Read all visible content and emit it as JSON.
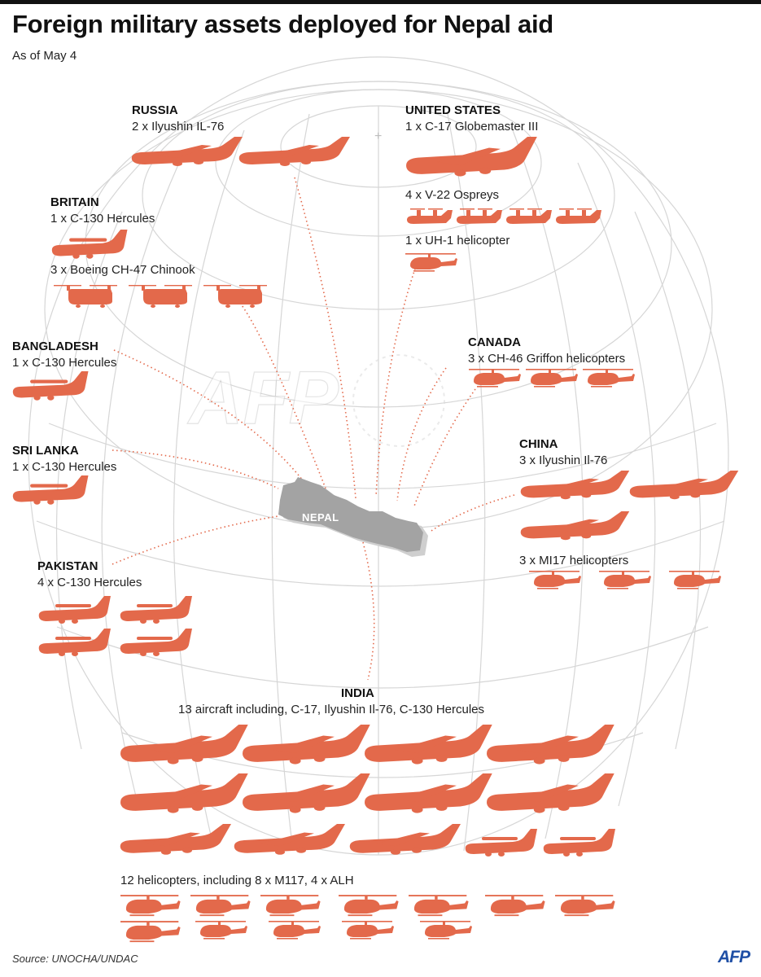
{
  "title": "Foreign military assets deployed for Nepal aid",
  "subtitle": "As of May 4",
  "map_label": "NEPAL",
  "source": "Source: UNOCHA/UNDAC",
  "brand": "AFP",
  "colors": {
    "aircraft": "#e3694b",
    "nepal": "#a3a3a3",
    "nepal_shadow": "#cfcfcf",
    "connector": "#e3694b",
    "globe_lines": "#d6d6d6"
  },
  "countries": {
    "russia": {
      "name": "RUSSIA",
      "lines": [
        "2 x Ilyushin IL-76"
      ]
    },
    "united_states": {
      "name": "UNITED STATES",
      "lines": [
        "1 x C-17 Globemaster III",
        "4 x V-22 Ospreys",
        "1 x UH-1 helicopter"
      ]
    },
    "britain": {
      "name": "BRITAIN",
      "lines": [
        "1 x  C-130 Hercules",
        "3 x Boeing CH-47 Chinook"
      ]
    },
    "bangladesh": {
      "name": "BANGLADESH",
      "lines": [
        "1 x  C-130 Hercules"
      ]
    },
    "canada": {
      "name": "CANADA",
      "lines": [
        "3 x CH-46 Griffon helicopters"
      ]
    },
    "sri_lanka": {
      "name": "SRI LANKA",
      "lines": [
        "1 x  C-130 Hercules"
      ]
    },
    "china": {
      "name": "CHINA",
      "lines": [
        "3 x Ilyushin Il-76",
        "3 x MI17 helicopters"
      ]
    },
    "pakistan": {
      "name": "PAKISTAN",
      "lines": [
        "4 x C-130 Hercules"
      ]
    },
    "india": {
      "name": "INDIA",
      "lines": [
        "13 aircraft including, C-17, Ilyushin Il-76, C-130 Hercules",
        "12 helicopters, including 8 x M117, 4 x ALH"
      ]
    }
  },
  "icons": {
    "jet": "jet-transport-icon",
    "hercules": "turboprop-transport-icon",
    "helicopter": "helicopter-icon",
    "chinook": "tandem-rotor-helicopter-icon",
    "osprey": "tiltrotor-icon"
  }
}
